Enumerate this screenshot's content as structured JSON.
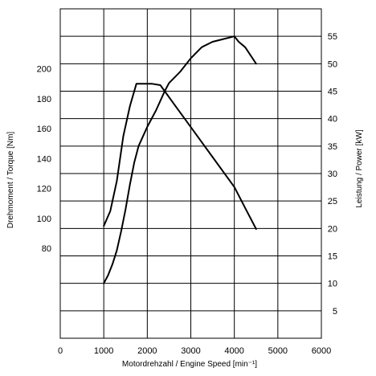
{
  "chart_data": {
    "type": "line",
    "title": "",
    "xlabel": "Motordrehzahl / Engine Speed [min⁻¹]",
    "ylabel_left": "Drehmoment / Torque [Nm]",
    "ylabel_right": "Leistung / Power [kW]",
    "xlim": [
      0,
      6000
    ],
    "ylim_left": [
      20,
      240
    ],
    "ylim_right": [
      0,
      60
    ],
    "x_ticks": [
      "0",
      "1000",
      "2000",
      "3000",
      "4000",
      "5000",
      "6000"
    ],
    "y_ticks_left": [
      "80",
      "100",
      "120",
      "140",
      "160",
      "180",
      "200"
    ],
    "y_ticks_right": [
      "5",
      "10",
      "15",
      "20",
      "25",
      "30",
      "35",
      "40",
      "45",
      "50",
      "55"
    ],
    "grid": true,
    "legend": "none",
    "series": [
      {
        "axis": "left",
        "x": [
          1000,
          1150,
          1300,
          1450,
          1600,
          1750,
          1900,
          2100,
          2300,
          2400,
          2600,
          3000,
          3500,
          4000,
          4250,
          4500
        ],
        "y": [
          95,
          105,
          125,
          155,
          175,
          190,
          190,
          190,
          189,
          185,
          177,
          161,
          141,
          121,
          107,
          93
        ]
      },
      {
        "axis": "right",
        "x": [
          1000,
          1100,
          1200,
          1300,
          1400,
          1500,
          1600,
          1700,
          1800,
          2000,
          2200,
          2400,
          2500,
          2750,
          3000,
          3250,
          3500,
          3750,
          4000,
          4100,
          4250,
          4500
        ],
        "y": [
          10,
          11.5,
          13.5,
          16,
          19.5,
          23.5,
          28,
          32,
          35,
          38.5,
          41.5,
          45,
          46.5,
          48.5,
          51,
          53,
          54,
          54.5,
          55,
          54,
          53,
          50
        ]
      }
    ]
  }
}
